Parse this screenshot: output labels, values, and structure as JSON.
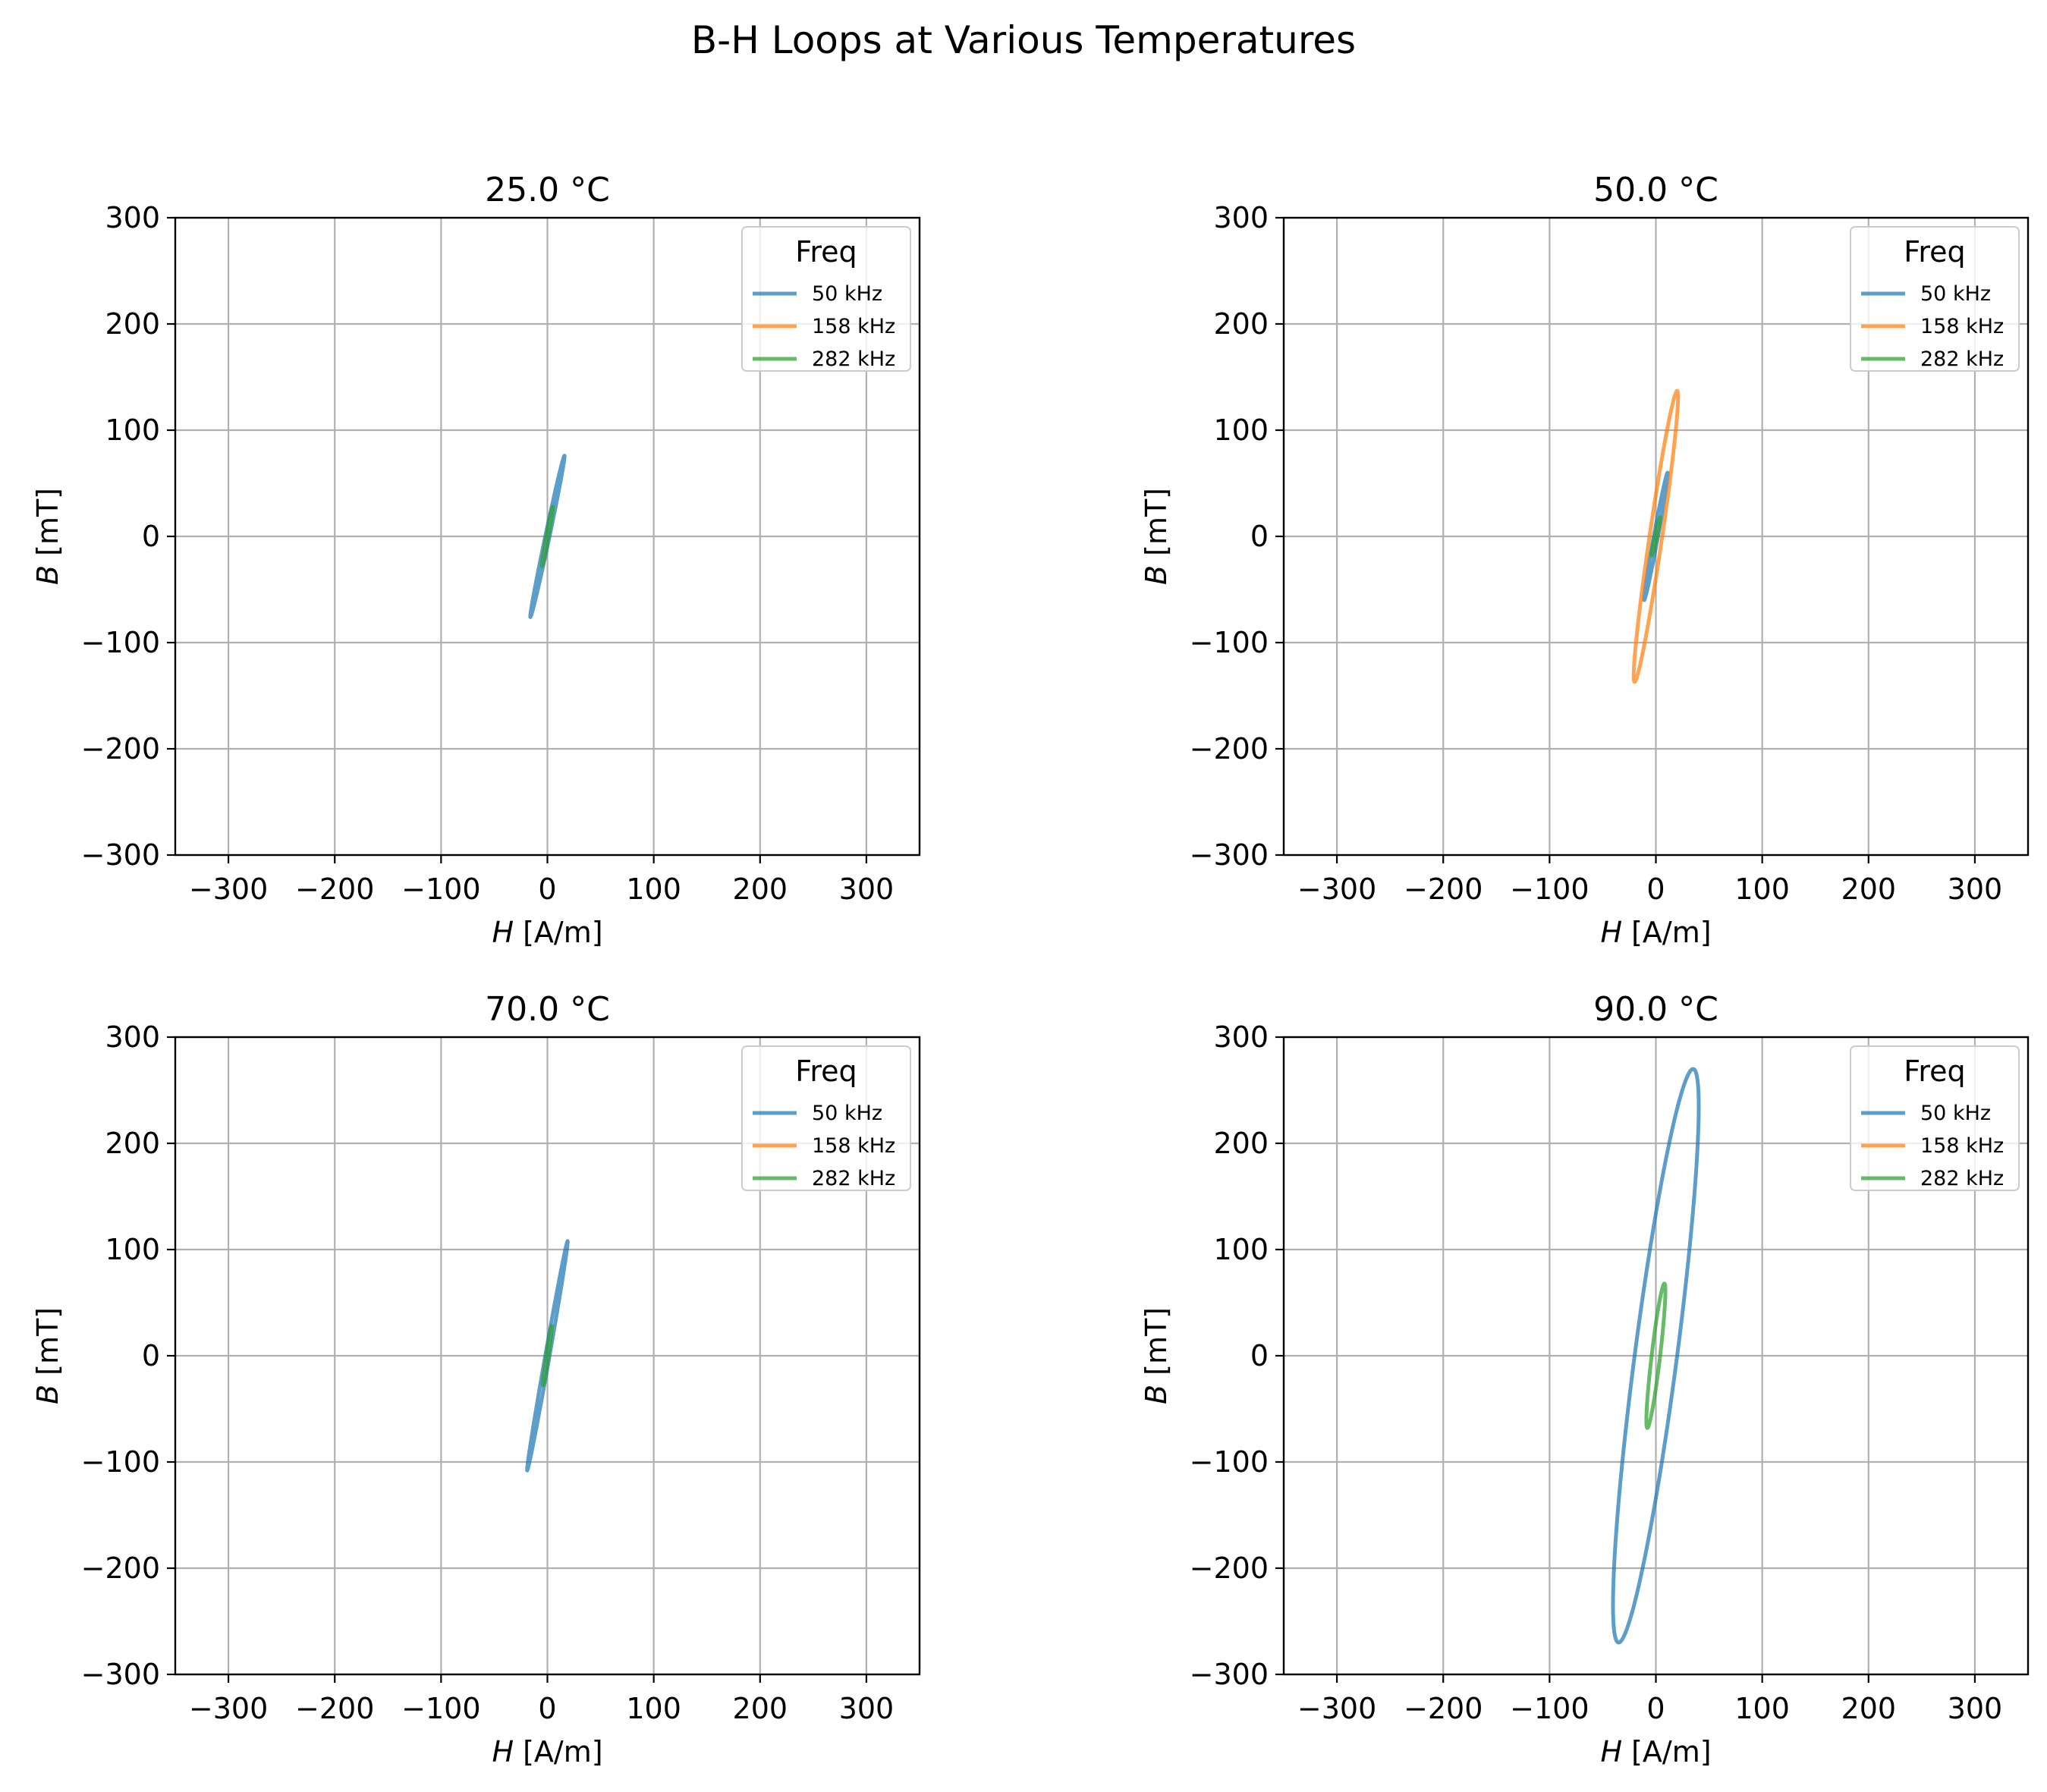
{
  "figure_title": "B-H Loops at Various Temperatures",
  "colors": {
    "50 kHz": "#1f77b4",
    "158 kHz": "#ff7f0e",
    "282 kHz": "#2ca02c",
    "grid": "#b0b0b0"
  },
  "chart_data": [
    {
      "type": "line",
      "title": "25.0 °C",
      "xlabel_symbol": "H",
      "xlabel_unit": " [A/m]",
      "ylabel_symbol": "B",
      "ylabel_unit": " [mT]",
      "xlim": [
        -350,
        350
      ],
      "ylim": [
        -300,
        300
      ],
      "xticks": [
        -300,
        -200,
        -100,
        0,
        100,
        200,
        300
      ],
      "yticks": [
        -300,
        -200,
        -100,
        0,
        100,
        200,
        300
      ],
      "grid": true,
      "legend": {
        "title": "Freq",
        "placement": "top-right",
        "entries": [
          "50 kHz",
          "158 kHz",
          "282 kHz"
        ]
      },
      "series": [
        {
          "name": "50 kHz",
          "color": "#1f77b4",
          "loop": {
            "h_amp": 18,
            "b_amp": 76,
            "h_coercive": 2
          }
        },
        {
          "name": "158 kHz",
          "color": "#ff7f0e",
          "loop": null
        },
        {
          "name": "282 kHz",
          "color": "#2ca02c",
          "loop": {
            "h_amp": 6,
            "b_amp": 28,
            "h_coercive": 1
          }
        }
      ]
    },
    {
      "type": "line",
      "title": "50.0 °C",
      "xlabel_symbol": "H",
      "xlabel_unit": " [A/m]",
      "ylabel_symbol": "B",
      "ylabel_unit": " [mT]",
      "xlim": [
        -350,
        350
      ],
      "ylim": [
        -300,
        300
      ],
      "xticks": [
        -300,
        -200,
        -100,
        0,
        100,
        200,
        300
      ],
      "yticks": [
        -300,
        -200,
        -100,
        0,
        100,
        200,
        300
      ],
      "grid": true,
      "legend": {
        "title": "Freq",
        "placement": "top-right",
        "entries": [
          "50 kHz",
          "158 kHz",
          "282 kHz"
        ]
      },
      "series": [
        {
          "name": "50 kHz",
          "color": "#1f77b4",
          "loop": {
            "h_amp": 13,
            "b_amp": 60,
            "h_coercive": 2
          }
        },
        {
          "name": "158 kHz",
          "color": "#ff7f0e",
          "loop": {
            "h_amp": 26,
            "b_amp": 137,
            "h_coercive": 6
          }
        },
        {
          "name": "282 kHz",
          "color": "#2ca02c",
          "loop": {
            "h_amp": 5,
            "b_amp": 18,
            "h_coercive": 1
          }
        }
      ]
    },
    {
      "type": "line",
      "title": "70.0 °C",
      "xlabel_symbol": "H",
      "xlabel_unit": " [A/m]",
      "ylabel_symbol": "B",
      "ylabel_unit": " [mT]",
      "xlim": [
        -350,
        350
      ],
      "ylim": [
        -300,
        300
      ],
      "xticks": [
        -300,
        -200,
        -100,
        0,
        100,
        200,
        300
      ],
      "yticks": [
        -300,
        -200,
        -100,
        0,
        100,
        200,
        300
      ],
      "grid": true,
      "legend": {
        "title": "Freq",
        "placement": "top-right",
        "entries": [
          "50 kHz",
          "158 kHz",
          "282 kHz"
        ]
      },
      "series": [
        {
          "name": "50 kHz",
          "color": "#1f77b4",
          "loop": {
            "h_amp": 21,
            "b_amp": 108,
            "h_coercive": 2
          }
        },
        {
          "name": "158 kHz",
          "color": "#ff7f0e",
          "loop": null
        },
        {
          "name": "282 kHz",
          "color": "#2ca02c",
          "loop": {
            "h_amp": 5,
            "b_amp": 28,
            "h_coercive": 1
          }
        }
      ]
    },
    {
      "type": "line",
      "title": "90.0 °C",
      "xlabel_symbol": "H",
      "xlabel_unit": " [A/m]",
      "ylabel_symbol": "B",
      "ylabel_unit": " [mT]",
      "xlim": [
        -350,
        350
      ],
      "ylim": [
        -300,
        300
      ],
      "xticks": [
        -300,
        -200,
        -100,
        0,
        100,
        200,
        300
      ],
      "yticks": [
        -300,
        -200,
        -100,
        0,
        100,
        200,
        300
      ],
      "grid": true,
      "legend": {
        "title": "Freq",
        "placement": "top-right",
        "entries": [
          "50 kHz",
          "158 kHz",
          "282 kHz"
        ]
      },
      "series": [
        {
          "name": "50 kHz",
          "color": "#1f77b4",
          "loop": {
            "h_amp": 55,
            "b_amp": 270,
            "h_coercive": 20
          }
        },
        {
          "name": "158 kHz",
          "color": "#ff7f0e",
          "loop": null
        },
        {
          "name": "282 kHz",
          "color": "#2ca02c",
          "loop": {
            "h_amp": 12,
            "b_amp": 68,
            "h_coercive": 4
          }
        }
      ]
    }
  ]
}
